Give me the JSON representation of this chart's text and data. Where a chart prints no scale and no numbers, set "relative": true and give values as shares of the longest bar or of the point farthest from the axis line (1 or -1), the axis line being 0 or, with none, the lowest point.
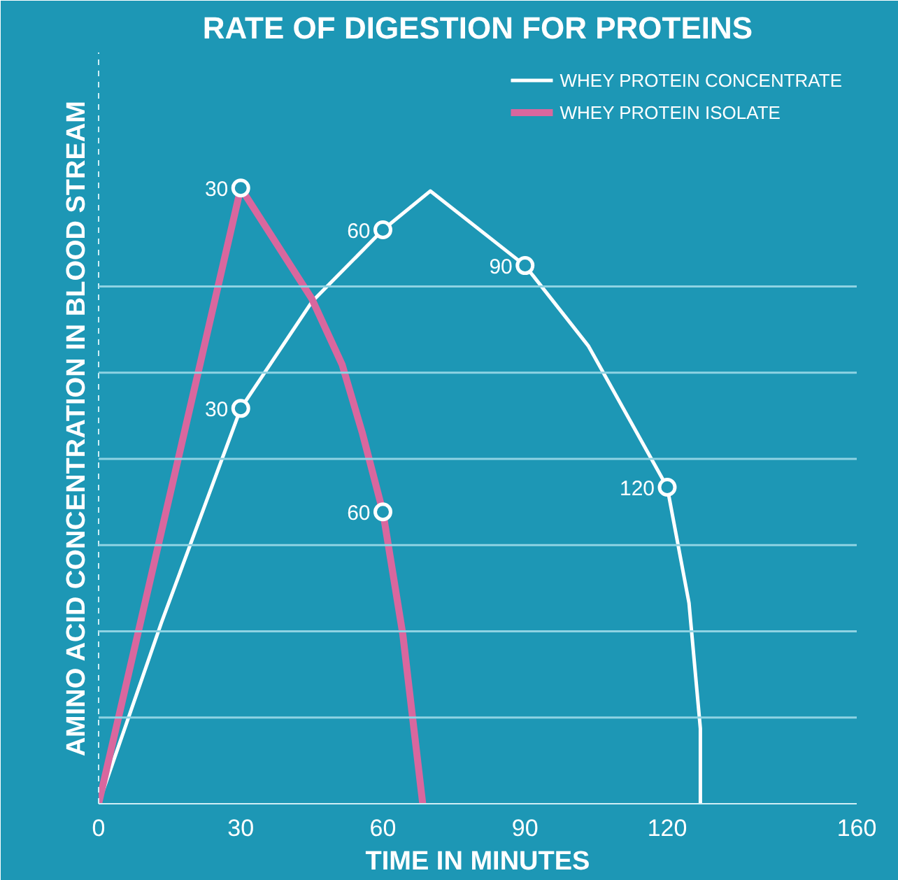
{
  "chart_data": {
    "type": "line",
    "relative": true,
    "title": "RATE OF DIGESTION FOR PROTEINS",
    "xlabel": "TIME IN MINUTES",
    "ylabel": "AMINO ACID CONCENTRATION IN BLOOD STREAM",
    "xlim": [
      0,
      160
    ],
    "xticks": [
      0,
      30,
      60,
      90,
      120,
      160
    ],
    "legend": "top right",
    "ref_lines": [
      {
        "axis": "y",
        "value": 0.14,
        "color": "#8fd3e3"
      },
      {
        "axis": "y",
        "value": 0.28,
        "color": "#8fd3e3"
      },
      {
        "axis": "y",
        "value": 0.42,
        "color": "#8fd3e3"
      },
      {
        "axis": "y",
        "value": 0.56,
        "color": "#8fd3e3"
      },
      {
        "axis": "y",
        "value": 0.7,
        "color": "#8fd3e3"
      },
      {
        "axis": "y",
        "value": 0.84,
        "color": "#8fd3e3"
      }
    ],
    "series": [
      {
        "name": "WHEY PROTEIN CONCENTRATE",
        "color": "#ffffff",
        "x": [
          0,
          13.3,
          30,
          45,
          60,
          70,
          90,
          103.4,
          120,
          124.6,
          127,
          127
        ],
        "values": [
          0,
          0.295,
          0.642,
          0.815,
          0.932,
          0.995,
          0.874,
          0.743,
          0.514,
          0.326,
          0.122,
          0
        ]
      },
      {
        "name": "WHEY PROTEIN ISOLATE",
        "color": "#d9679e",
        "x": [
          0,
          30,
          45,
          51.4,
          55.7,
          60,
          64.2,
          68.4
        ],
        "values": [
          0,
          1.0,
          0.82,
          0.713,
          0.601,
          0.474,
          0.275,
          0
        ]
      }
    ],
    "annotations": [
      {
        "text": "30",
        "x": 30,
        "y": 0.642
      },
      {
        "text": "60",
        "x": 60,
        "y": 0.932
      },
      {
        "text": "90",
        "x": 90,
        "y": 0.874
      },
      {
        "text": "120",
        "x": 120,
        "y": 0.514
      },
      {
        "text": "30",
        "x": 30,
        "y": 1.0
      },
      {
        "text": "60",
        "x": 60,
        "y": 0.474
      }
    ]
  }
}
